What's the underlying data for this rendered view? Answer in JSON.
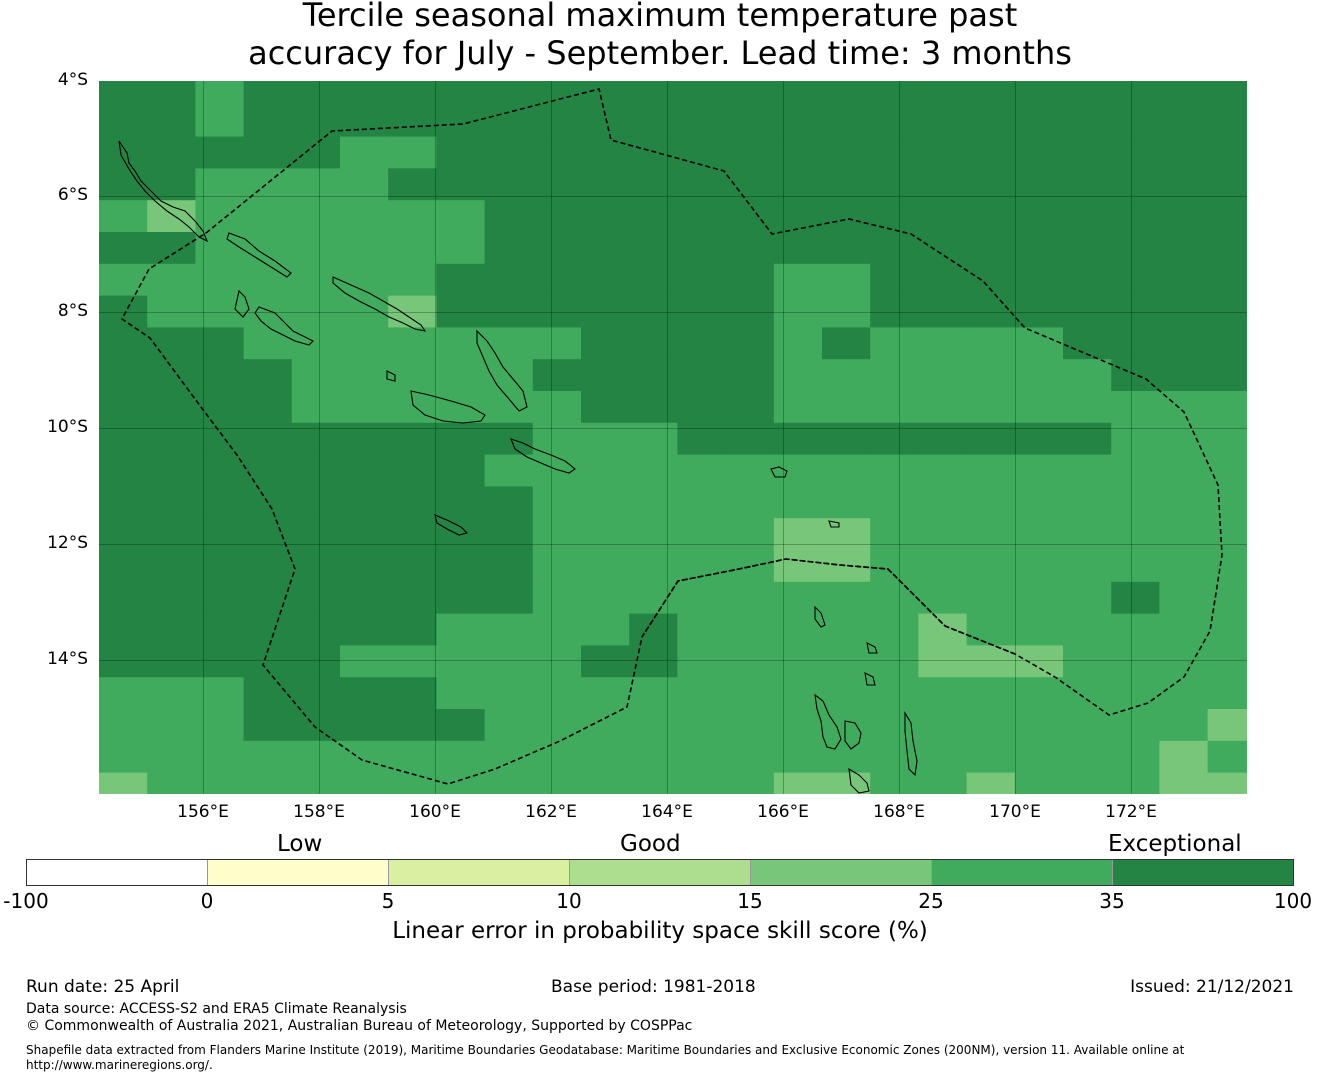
{
  "title_line1": "Tercile seasonal maximum temperature past",
  "title_line2": "accuracy for July - September. Lead time: 3 months",
  "map": {
    "lat_labels": [
      "4°S",
      "6°S",
      "8°S",
      "10°S",
      "12°S",
      "14°S"
    ],
    "lon_labels": [
      "156°E",
      "158°E",
      "160°E",
      "162°E",
      "164°E",
      "166°E",
      "168°E",
      "170°E",
      "172°E"
    ]
  },
  "colorbar": {
    "categories": [
      "Low",
      "Good",
      "Exceptional"
    ],
    "ticks": [
      "-100",
      "0",
      "5",
      "10",
      "15",
      "25",
      "35",
      "100"
    ],
    "colors": [
      "#ffffff",
      "#ffffcc",
      "#d9f0a3",
      "#addd8e",
      "#78c679",
      "#41ab5d",
      "#238443"
    ],
    "label": "Linear error in probability space skill score (%)"
  },
  "footer": {
    "run_date": "Run date: 25 April",
    "base_period": "Base period: 1981-2018",
    "issued": "Issued: 21/12/2021",
    "data_source": "Data source: ACCESS-S2 and ERA5 Climate Reanalysis",
    "copyright": "© Commonwealth of Australia 2021, Australian Bureau of Meteorology, Supported by COSPPac",
    "shapefile_1": "Shapefile data extracted from Flanders Marine Institute (2019), Maritime Boundaries Geodatabase: Maritime Boundaries and Exclusive Economic Zones (200NM), version 11. Available online at",
    "shapefile_2": "http://www.marineregions.org/."
  }
}
